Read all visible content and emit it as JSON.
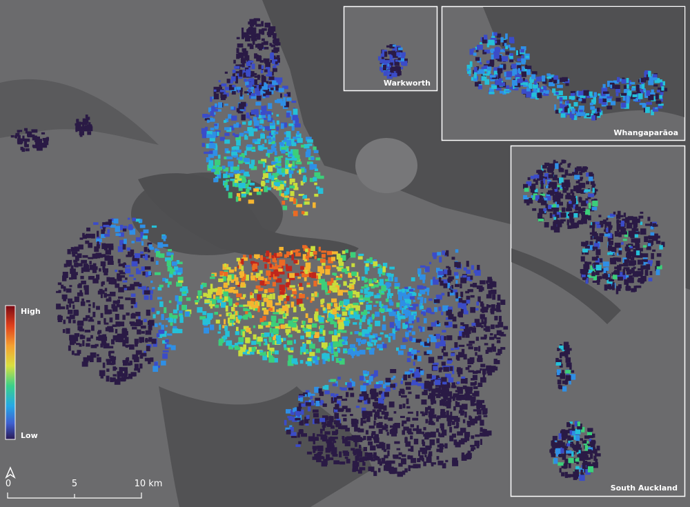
{
  "legend": {
    "high": "High",
    "low": "Low"
  },
  "scale_bar": {
    "labels": [
      "0",
      "5",
      "10 km"
    ]
  },
  "insets": [
    {
      "label": "Warkworth"
    },
    {
      "label": "Whangaparāoa"
    },
    {
      "label": "South Auckland"
    }
  ]
}
